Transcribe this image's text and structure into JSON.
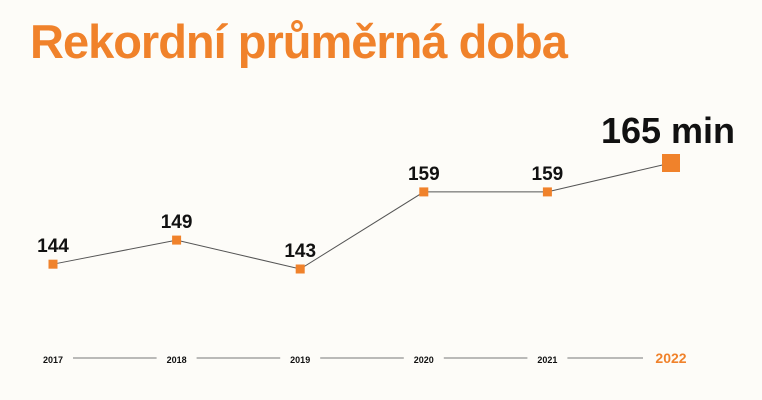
{
  "colors": {
    "accent": "#f0822b",
    "text": "#111111",
    "line": "#555555",
    "axis_line": "#777777",
    "background": "#fdfcf8"
  },
  "chart_data": {
    "type": "line",
    "title": "Rekordní průměrná doba",
    "categories": [
      "2017",
      "2018",
      "2019",
      "2020",
      "2021",
      "2022"
    ],
    "values": [
      144,
      149,
      143,
      159,
      159,
      165
    ],
    "value_labels": [
      "144",
      "149",
      "143",
      "159",
      "159",
      "165 min"
    ],
    "highlight_category": "2022",
    "ylim": [
      138,
      170
    ],
    "grid": false,
    "legend": "none"
  }
}
